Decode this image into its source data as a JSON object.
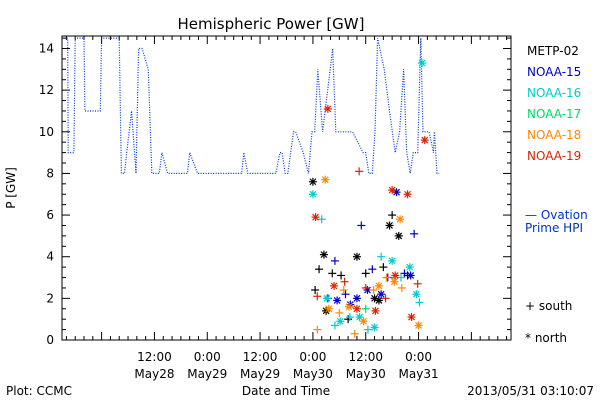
{
  "chart_data": {
    "type": "scatter",
    "title": "Hemispheric Power [GW]",
    "ylabel": "P [GW]",
    "xlabel": "Date and Time",
    "ylim": [
      0,
      14.6
    ],
    "y_ticks": [
      0,
      2,
      4,
      6,
      8,
      10,
      12,
      14
    ],
    "x_range_hours": [
      -93.0,
      9.0
    ],
    "x_tick_labels": [
      {
        "h": -72,
        "top": "12:00",
        "bottom": "May28"
      },
      {
        "h": -60,
        "top": "0:00",
        "bottom": "May29"
      },
      {
        "h": -48,
        "top": "12:00",
        "bottom": "May29"
      },
      {
        "h": -36,
        "top": "0:00",
        "bottom": "May30"
      },
      {
        "h": -24,
        "top": "12:00",
        "bottom": "May30"
      },
      {
        "h": -12,
        "top": "0:00",
        "bottom": "May31"
      }
    ],
    "legend": [
      {
        "name": "METP-02",
        "color": "#000000"
      },
      {
        "name": "NOAA-15",
        "color": "#0000cc"
      },
      {
        "name": "NOAA-16",
        "color": "#00cccc"
      },
      {
        "name": "NOAA-17",
        "color": "#00dd66"
      },
      {
        "name": "NOAA-18",
        "color": "#ff8800"
      },
      {
        "name": "NOAA-19",
        "color": "#dd2200"
      }
    ],
    "ovation": {
      "label_line1": "— Ovation",
      "label_line2": "Prime HPI",
      "color": "#0033cc",
      "x": [
        -92.5,
        -91.7,
        -91.6,
        -90.3,
        -90.0,
        -88.0,
        -87.8,
        -84.3,
        -84.0,
        -80.0,
        -79.5,
        -78.8,
        -78.3,
        -77.2,
        -76.2,
        -75.6,
        -74.8,
        -73.4,
        -72.6,
        -72.2,
        -70.9,
        -70.3,
        -69.0,
        -67.7,
        -67.0,
        -64.5,
        -64.0,
        -62.2,
        -61.6,
        -58.3,
        -57.2,
        -56.2,
        -52.2,
        -51.7,
        -50.8,
        -49.7,
        -48.2,
        -46.0,
        -44.4,
        -43.5,
        -43.0,
        -42.3,
        -41.7,
        -40.4,
        -39.9,
        -38.2,
        -37.0,
        -36.2,
        -35.6,
        -34.9,
        -33.8,
        -31.5,
        -30.8,
        -28.5,
        -27.0,
        -24.6,
        -24.0,
        -23.3,
        -22.5,
        -21.9,
        -21.3,
        -19.8,
        -18.6,
        -17.3,
        -16.3,
        -15.4,
        -14.7,
        -13.9,
        -13.2,
        -12.2,
        -11.5,
        -11.0,
        -10.0,
        -9.6,
        -8.6,
        -8.4,
        -7.8,
        -7.3
      ],
      "y": [
        14.5,
        14.5,
        9.0,
        9.0,
        14.5,
        14.5,
        11.0,
        11.0,
        14.5,
        14.5,
        8.0,
        8.0,
        9.0,
        11.0,
        8.0,
        14.0,
        14.0,
        13.0,
        8.0,
        8.0,
        8.0,
        9.0,
        8.0,
        8.0,
        8.0,
        8.0,
        9.0,
        8.0,
        8.0,
        8.0,
        8.0,
        8.0,
        8.0,
        9.0,
        8.0,
        8.0,
        8.0,
        8.0,
        8.0,
        9.0,
        9.0,
        8.0,
        8.0,
        10.0,
        10.0,
        9.0,
        8.0,
        10.0,
        10.0,
        13.0,
        10.0,
        14.0,
        10.0,
        10.0,
        10.0,
        9.0,
        9.0,
        8.0,
        8.0,
        10.0,
        14.5,
        13.0,
        11.0,
        9.0,
        10.0,
        13.0,
        9.0,
        8.0,
        9.0,
        9.0,
        14.5,
        10.0,
        10.0,
        10.0,
        9.0,
        10.0,
        8.0,
        8.0
      ]
    },
    "markers": {
      "south_label": "+ south",
      "north_label": "* north"
    },
    "points": [
      {
        "sat": 0,
        "m": "n",
        "x": -36.0,
        "y": 7.6
      },
      {
        "sat": 0,
        "m": "s",
        "x": -34.6,
        "y": 3.4
      },
      {
        "sat": 0,
        "m": "n",
        "x": -33.5,
        "y": 4.1
      },
      {
        "sat": 0,
        "m": "s",
        "x": -31.6,
        "y": 3.2
      },
      {
        "sat": 0,
        "m": "s",
        "x": -29.6,
        "y": 3.1
      },
      {
        "sat": 0,
        "m": "n",
        "x": -26.0,
        "y": 4.0
      },
      {
        "sat": 0,
        "m": "s",
        "x": -24.0,
        "y": 3.2
      },
      {
        "sat": 0,
        "m": "n",
        "x": -22.0,
        "y": 2.0
      },
      {
        "sat": 0,
        "m": "s",
        "x": -20.0,
        "y": 3.5
      },
      {
        "sat": 0,
        "m": "n",
        "x": -18.6,
        "y": 5.5
      },
      {
        "sat": 0,
        "m": "s",
        "x": -18.0,
        "y": 6.0
      },
      {
        "sat": 0,
        "m": "n",
        "x": -16.5,
        "y": 5.0
      },
      {
        "sat": 0,
        "m": "s",
        "x": -14.5,
        "y": 3.1
      },
      {
        "sat": 0,
        "m": "n",
        "x": -33.0,
        "y": 1.4
      },
      {
        "sat": 0,
        "m": "s",
        "x": -28.0,
        "y": 1.0
      },
      {
        "sat": 0,
        "m": "n",
        "x": -21.0,
        "y": 1.9
      },
      {
        "sat": 0,
        "m": "s",
        "x": -35.5,
        "y": 2.4
      },
      {
        "sat": 1,
        "m": "s",
        "x": -32.6,
        "y": 2.0
      },
      {
        "sat": 1,
        "m": "n",
        "x": -30.5,
        "y": 1.9
      },
      {
        "sat": 1,
        "m": "s",
        "x": -28.6,
        "y": 2.2
      },
      {
        "sat": 1,
        "m": "n",
        "x": -27.5,
        "y": 1.7
      },
      {
        "sat": 1,
        "m": "s",
        "x": -25.0,
        "y": 5.5
      },
      {
        "sat": 1,
        "m": "n",
        "x": -23.6,
        "y": 2.4
      },
      {
        "sat": 1,
        "m": "s",
        "x": -22.5,
        "y": 3.4
      },
      {
        "sat": 1,
        "m": "n",
        "x": -20.5,
        "y": 2.2
      },
      {
        "sat": 1,
        "m": "s",
        "x": -19.0,
        "y": 3.0
      },
      {
        "sat": 1,
        "m": "n",
        "x": -17.0,
        "y": 7.1
      },
      {
        "sat": 1,
        "m": "s",
        "x": -15.2,
        "y": 3.2
      },
      {
        "sat": 1,
        "m": "n",
        "x": -13.8,
        "y": 3.1
      },
      {
        "sat": 1,
        "m": "s",
        "x": -13.0,
        "y": 5.1
      },
      {
        "sat": 1,
        "m": "n",
        "x": -26.0,
        "y": 2.0
      },
      {
        "sat": 1,
        "m": "s",
        "x": -31.0,
        "y": 3.8
      },
      {
        "sat": 2,
        "m": "n",
        "x": -36.0,
        "y": 7.0
      },
      {
        "sat": 2,
        "m": "s",
        "x": -34.0,
        "y": 5.8
      },
      {
        "sat": 2,
        "m": "n",
        "x": -32.8,
        "y": 2.0
      },
      {
        "sat": 2,
        "m": "s",
        "x": -31.0,
        "y": 0.7
      },
      {
        "sat": 2,
        "m": "n",
        "x": -29.8,
        "y": 0.9
      },
      {
        "sat": 2,
        "m": "s",
        "x": -27.6,
        "y": 1.1
      },
      {
        "sat": 2,
        "m": "n",
        "x": -25.4,
        "y": 1.1
      },
      {
        "sat": 2,
        "m": "s",
        "x": -23.5,
        "y": 0.5
      },
      {
        "sat": 2,
        "m": "n",
        "x": -22.0,
        "y": 0.6
      },
      {
        "sat": 2,
        "m": "s",
        "x": -20.5,
        "y": 4.0
      },
      {
        "sat": 2,
        "m": "n",
        "x": -18.0,
        "y": 3.8
      },
      {
        "sat": 2,
        "m": "s",
        "x": -16.0,
        "y": 3.0
      },
      {
        "sat": 2,
        "m": "n",
        "x": -14.0,
        "y": 3.5
      },
      {
        "sat": 2,
        "m": "n",
        "x": -11.2,
        "y": 13.3
      },
      {
        "sat": 2,
        "m": "s",
        "x": -11.8,
        "y": 1.8
      },
      {
        "sat": 2,
        "m": "n",
        "x": -12.5,
        "y": 2.2
      },
      {
        "sat": 3,
        "m": "s",
        "x": -24.0,
        "y": 1.5
      },
      {
        "sat": 4,
        "m": "n",
        "x": -33.2,
        "y": 7.7
      },
      {
        "sat": 4,
        "m": "s",
        "x": -35.0,
        "y": 0.5
      },
      {
        "sat": 4,
        "m": "n",
        "x": -32.4,
        "y": 1.5
      },
      {
        "sat": 4,
        "m": "s",
        "x": -30.0,
        "y": 1.3
      },
      {
        "sat": 4,
        "m": "n",
        "x": -27.8,
        "y": 1.6
      },
      {
        "sat": 4,
        "m": "s",
        "x": -26.5,
        "y": 0.3
      },
      {
        "sat": 4,
        "m": "n",
        "x": -24.5,
        "y": 0.9
      },
      {
        "sat": 4,
        "m": "s",
        "x": -22.2,
        "y": 2.4
      },
      {
        "sat": 4,
        "m": "n",
        "x": -21.0,
        "y": 2.6
      },
      {
        "sat": 4,
        "m": "s",
        "x": -19.3,
        "y": 3.0
      },
      {
        "sat": 4,
        "m": "n",
        "x": -17.5,
        "y": 2.8
      },
      {
        "sat": 4,
        "m": "n",
        "x": -16.2,
        "y": 5.8
      },
      {
        "sat": 4,
        "m": "s",
        "x": -15.8,
        "y": 2.5
      },
      {
        "sat": 4,
        "m": "n",
        "x": -12.0,
        "y": 0.7
      },
      {
        "sat": 4,
        "m": "s",
        "x": -29.0,
        "y": 2.4
      },
      {
        "sat": 5,
        "m": "n",
        "x": -35.4,
        "y": 5.9
      },
      {
        "sat": 5,
        "m": "n",
        "x": -32.6,
        "y": 11.1
      },
      {
        "sat": 5,
        "m": "s",
        "x": -25.5,
        "y": 8.1
      },
      {
        "sat": 5,
        "m": "n",
        "x": -18.0,
        "y": 7.2
      },
      {
        "sat": 5,
        "m": "n",
        "x": -14.5,
        "y": 7.0
      },
      {
        "sat": 5,
        "m": "n",
        "x": -10.6,
        "y": 9.6
      },
      {
        "sat": 5,
        "m": "s",
        "x": -35.0,
        "y": 2.1
      },
      {
        "sat": 5,
        "m": "n",
        "x": -31.2,
        "y": 2.6
      },
      {
        "sat": 5,
        "m": "s",
        "x": -28.8,
        "y": 2.8
      },
      {
        "sat": 5,
        "m": "n",
        "x": -26.0,
        "y": 1.5
      },
      {
        "sat": 5,
        "m": "s",
        "x": -24.0,
        "y": 2.5
      },
      {
        "sat": 5,
        "m": "n",
        "x": -21.8,
        "y": 1.4
      },
      {
        "sat": 5,
        "m": "s",
        "x": -19.5,
        "y": 2.0
      },
      {
        "sat": 5,
        "m": "n",
        "x": -17.3,
        "y": 3.1
      },
      {
        "sat": 5,
        "m": "s",
        "x": -12.2,
        "y": 2.7
      },
      {
        "sat": 5,
        "m": "n",
        "x": -13.6,
        "y": 1.1
      }
    ],
    "grid": false
  },
  "footer": {
    "left": "Plot: CCMC",
    "center": "Date and Time",
    "right": "2013/05/31  03:10:07"
  }
}
